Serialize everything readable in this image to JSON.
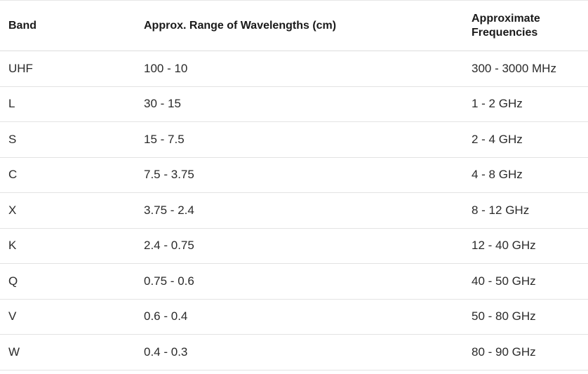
{
  "table": {
    "headers": {
      "band": "Band",
      "wavelength": "Approx. Range of Wavelengths (cm)",
      "frequency": "Approximate Frequencies"
    },
    "rows": [
      {
        "band": "UHF",
        "wavelength": "100 - 10",
        "frequency": "300 - 3000 MHz"
      },
      {
        "band": "L",
        "wavelength": "30 - 15",
        "frequency": "1 - 2 GHz"
      },
      {
        "band": "S",
        "wavelength": "15 - 7.5",
        "frequency": "2 - 4 GHz"
      },
      {
        "band": "C",
        "wavelength": "7.5 - 3.75",
        "frequency": "4 - 8 GHz"
      },
      {
        "band": "X",
        "wavelength": "3.75 - 2.4",
        "frequency": "8 - 12 GHz"
      },
      {
        "band": "K",
        "wavelength": "2.4 - 0.75",
        "frequency": "12 - 40 GHz"
      },
      {
        "band": "Q",
        "wavelength": "0.75 - 0.6",
        "frequency": "40 - 50 GHz"
      },
      {
        "band": "V",
        "wavelength": "0.6 - 0.4",
        "frequency": "50 - 80 GHz"
      },
      {
        "band": "W",
        "wavelength": "0.4 - 0.3",
        "frequency": "80 - 90 GHz"
      }
    ]
  }
}
